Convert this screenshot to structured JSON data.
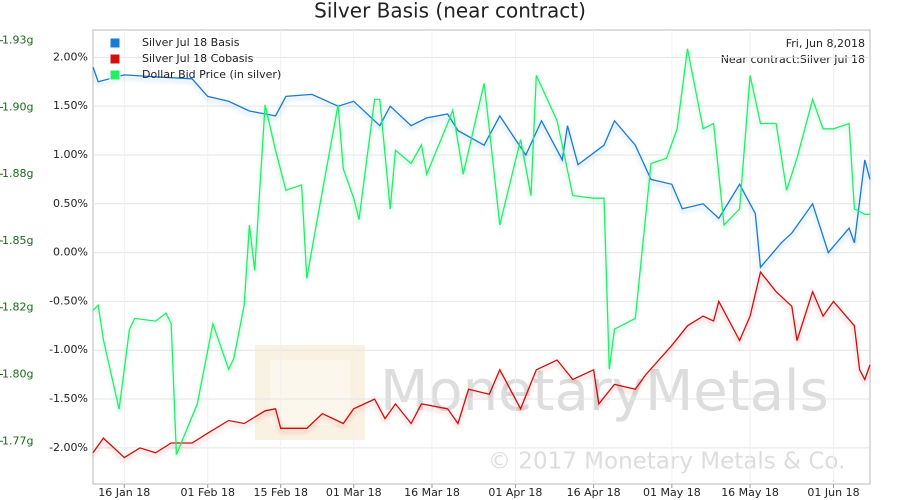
{
  "chart_data": {
    "type": "line",
    "title": "Silver Basis (near contract)",
    "annotations": [
      "Fri, Jun 8,2018",
      "Near contract:Silver Jul 18"
    ],
    "watermark": [
      "MonetaryMetals",
      "© 2017 Monetary Metals & Co."
    ],
    "xlim": [
      "2018-01-10",
      "2018-06-08"
    ],
    "xticks": [
      {
        "value": "2018-01-16",
        "label": "16 Jan 18"
      },
      {
        "value": "2018-02-01",
        "label": "01 Feb 18"
      },
      {
        "value": "2018-02-15",
        "label": "15 Feb 18"
      },
      {
        "value": "2018-03-01",
        "label": "01 Mar 18"
      },
      {
        "value": "2018-03-16",
        "label": "16 Mar 18"
      },
      {
        "value": "2018-04-01",
        "label": "01 Apr 18"
      },
      {
        "value": "2018-04-16",
        "label": "16 Apr 18"
      },
      {
        "value": "2018-05-01",
        "label": "01 May 18"
      },
      {
        "value": "2018-05-16",
        "label": "16 May 18"
      },
      {
        "value": "2018-06-01",
        "label": "01 Jun 18"
      }
    ],
    "ylim": [
      -2.37,
      2.28
    ],
    "yticks": [
      {
        "value": 2,
        "label": "2.00%"
      },
      {
        "value": 1.5,
        "label": "1.50%"
      },
      {
        "value": 1,
        "label": "1.00%"
      },
      {
        "value": 0.5,
        "label": "0.50%"
      },
      {
        "value": 0,
        "label": "0.00%"
      },
      {
        "value": -0.5,
        "label": "-0.50%"
      },
      {
        "value": -1,
        "label": "-1.00%"
      },
      {
        "value": -1.5,
        "label": "-1.50%"
      },
      {
        "value": -2,
        "label": "-2.00%"
      }
    ],
    "y2lim": [
      1.759,
      1.929
    ],
    "y2ticks": [
      {
        "value": 1.775,
        "label": "1.77g"
      },
      {
        "value": 1.8,
        "label": "1.80g"
      },
      {
        "value": 1.825,
        "label": "1.82g"
      },
      {
        "value": 1.85,
        "label": "1.85g"
      },
      {
        "value": 1.875,
        "label": "1.88g"
      },
      {
        "value": 1.9,
        "label": "1.90g"
      },
      {
        "value": 1.925,
        "label": "1.93g"
      }
    ],
    "grid": true,
    "legend": "top-left",
    "series": [
      {
        "name": "Silver Jul 18 Basis",
        "color": "#1a7ad4",
        "x": [
          "2018-01-10",
          "2018-01-11",
          "2018-01-16",
          "2018-01-22",
          "2018-01-29",
          "2018-02-01",
          "2018-02-05",
          "2018-02-09",
          "2018-02-14",
          "2018-02-16",
          "2018-02-21",
          "2018-02-26",
          "2018-03-01",
          "2018-03-06",
          "2018-03-08",
          "2018-03-12",
          "2018-03-15",
          "2018-03-19",
          "2018-03-21",
          "2018-03-26",
          "2018-03-29",
          "2018-04-03",
          "2018-04-06",
          "2018-04-10",
          "2018-04-11",
          "2018-04-13",
          "2018-04-18",
          "2018-04-20",
          "2018-04-24",
          "2018-04-27",
          "2018-05-01",
          "2018-05-03",
          "2018-05-07",
          "2018-05-10",
          "2018-05-14",
          "2018-05-17",
          "2018-05-18",
          "2018-05-22",
          "2018-05-24",
          "2018-05-28",
          "2018-05-31",
          "2018-06-04",
          "2018-06-05",
          "2018-06-07",
          "2018-06-08"
        ],
        "values": [
          1.9,
          1.75,
          1.82,
          1.8,
          1.78,
          1.6,
          1.55,
          1.45,
          1.4,
          1.6,
          1.62,
          1.5,
          1.55,
          1.3,
          1.5,
          1.3,
          1.38,
          1.42,
          1.25,
          1.1,
          1.4,
          1.0,
          1.35,
          0.95,
          1.3,
          0.9,
          1.1,
          1.35,
          1.1,
          0.75,
          0.7,
          0.45,
          0.5,
          0.35,
          0.7,
          0.4,
          -0.15,
          0.1,
          0.2,
          0.5,
          0.0,
          0.25,
          0.1,
          0.95,
          0.75
        ]
      },
      {
        "name": "Silver Jul 18 Cobasis",
        "color": "#d01010",
        "x": [
          "2018-01-10",
          "2018-01-12",
          "2018-01-16",
          "2018-01-19",
          "2018-01-22",
          "2018-01-25",
          "2018-01-29",
          "2018-02-01",
          "2018-02-05",
          "2018-02-08",
          "2018-02-12",
          "2018-02-14",
          "2018-02-15",
          "2018-02-20",
          "2018-02-23",
          "2018-02-27",
          "2018-03-01",
          "2018-03-05",
          "2018-03-07",
          "2018-03-09",
          "2018-03-12",
          "2018-03-14",
          "2018-03-19",
          "2018-03-21",
          "2018-03-23",
          "2018-03-27",
          "2018-03-29",
          "2018-04-02",
          "2018-04-05",
          "2018-04-09",
          "2018-04-12",
          "2018-04-16",
          "2018-04-17",
          "2018-04-20",
          "2018-04-24",
          "2018-04-26",
          "2018-05-01",
          "2018-05-04",
          "2018-05-07",
          "2018-05-09",
          "2018-05-10",
          "2018-05-14",
          "2018-05-16",
          "2018-05-18",
          "2018-05-21",
          "2018-05-24",
          "2018-05-25",
          "2018-05-28",
          "2018-05-30",
          "2018-06-01",
          "2018-06-05",
          "2018-06-06",
          "2018-06-07",
          "2018-06-08"
        ],
        "values": [
          -2.05,
          -1.9,
          -2.1,
          -2.0,
          -2.05,
          -1.95,
          -1.95,
          -1.85,
          -1.72,
          -1.75,
          -1.62,
          -1.6,
          -1.8,
          -1.8,
          -1.65,
          -1.75,
          -1.6,
          -1.5,
          -1.7,
          -1.55,
          -1.75,
          -1.55,
          -1.6,
          -1.75,
          -1.4,
          -1.45,
          -1.2,
          -1.6,
          -1.2,
          -1.1,
          -1.3,
          -1.2,
          -1.55,
          -1.35,
          -1.4,
          -1.25,
          -0.95,
          -0.75,
          -0.65,
          -0.7,
          -0.5,
          -0.9,
          -0.65,
          -0.2,
          -0.4,
          -0.55,
          -0.9,
          -0.4,
          -0.65,
          -0.5,
          -0.75,
          -1.2,
          -1.3,
          -1.15
        ]
      },
      {
        "name": "Dollar Bid Price (in silver)",
        "color": "#22ee66",
        "axis": "y2",
        "x": [
          "2018-01-10",
          "2018-01-11",
          "2018-01-12",
          "2018-01-15",
          "2018-01-17",
          "2018-01-18",
          "2018-01-22",
          "2018-01-24",
          "2018-01-25",
          "2018-01-26",
          "2018-01-30",
          "2018-02-02",
          "2018-02-05",
          "2018-02-06",
          "2018-02-08",
          "2018-02-09",
          "2018-02-10",
          "2018-02-12",
          "2018-02-14",
          "2018-02-16",
          "2018-02-19",
          "2018-02-20",
          "2018-02-22",
          "2018-02-26",
          "2018-02-27",
          "2018-03-01",
          "2018-03-02",
          "2018-03-05",
          "2018-03-06",
          "2018-03-08",
          "2018-03-09",
          "2018-03-12",
          "2018-03-14",
          "2018-03-15",
          "2018-03-19",
          "2018-03-20",
          "2018-03-22",
          "2018-03-26",
          "2018-03-27",
          "2018-03-29",
          "2018-04-02",
          "2018-04-04",
          "2018-04-05",
          "2018-04-09",
          "2018-04-12",
          "2018-04-16",
          "2018-04-18",
          "2018-04-19",
          "2018-04-20",
          "2018-04-24",
          "2018-04-27",
          "2018-04-30",
          "2018-05-02",
          "2018-05-04",
          "2018-05-07",
          "2018-05-09",
          "2018-05-11",
          "2018-05-14",
          "2018-05-16",
          "2018-05-18",
          "2018-05-21",
          "2018-05-23",
          "2018-05-25",
          "2018-05-28",
          "2018-05-30",
          "2018-06-01",
          "2018-06-04",
          "2018-06-05",
          "2018-06-07",
          "2018-06-08"
        ],
        "values": [
          1.824,
          1.826,
          1.813,
          1.787,
          1.817,
          1.821,
          1.82,
          1.823,
          1.819,
          1.77,
          1.789,
          1.819,
          1.802,
          1.806,
          1.826,
          1.856,
          1.839,
          1.901,
          1.884,
          1.869,
          1.871,
          1.836,
          1.858,
          1.901,
          1.877,
          1.866,
          1.858,
          1.903,
          1.903,
          1.862,
          1.884,
          1.879,
          1.886,
          1.875,
          1.894,
          1.899,
          1.875,
          1.909,
          1.892,
          1.856,
          1.888,
          1.867,
          1.912,
          1.895,
          1.867,
          1.866,
          1.866,
          1.802,
          1.817,
          1.821,
          1.879,
          1.881,
          1.892,
          1.922,
          1.892,
          1.894,
          1.856,
          1.862,
          1.912,
          1.894,
          1.894,
          1.869,
          1.881,
          1.903,
          1.892,
          1.892,
          1.894,
          1.862,
          1.86,
          1.86
        ]
      }
    ]
  }
}
